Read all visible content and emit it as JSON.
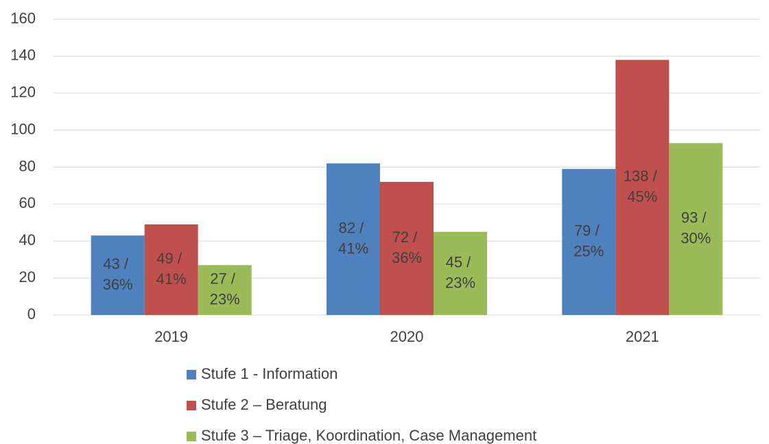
{
  "chart_data": {
    "type": "bar",
    "categories": [
      "2019",
      "2020",
      "2021"
    ],
    "series": [
      {
        "name": "Stufe 1 - Information",
        "color": "#4f81bd",
        "values": [
          43,
          82,
          79
        ],
        "value_labels": [
          "43 / 36%",
          "82 / 41%",
          "79 / 25%"
        ]
      },
      {
        "name": "Stufe 2 – Beratung",
        "color": "#c0504d",
        "values": [
          49,
          72,
          138
        ],
        "value_labels": [
          "49 / 41%",
          "72 / 36%",
          "138 / 45%"
        ]
      },
      {
        "name": "Stufe 3 – Triage, Koordination, Case Management",
        "color": "#9bbb59",
        "values": [
          27,
          45,
          93
        ],
        "value_labels": [
          "27 / 23%",
          "45 / 23%",
          "93 / 30%"
        ]
      }
    ],
    "ylim": [
      0,
      160
    ],
    "yticks": [
      0,
      20,
      40,
      60,
      80,
      100,
      120,
      140,
      160
    ],
    "grid": true,
    "legend": "bottom"
  }
}
